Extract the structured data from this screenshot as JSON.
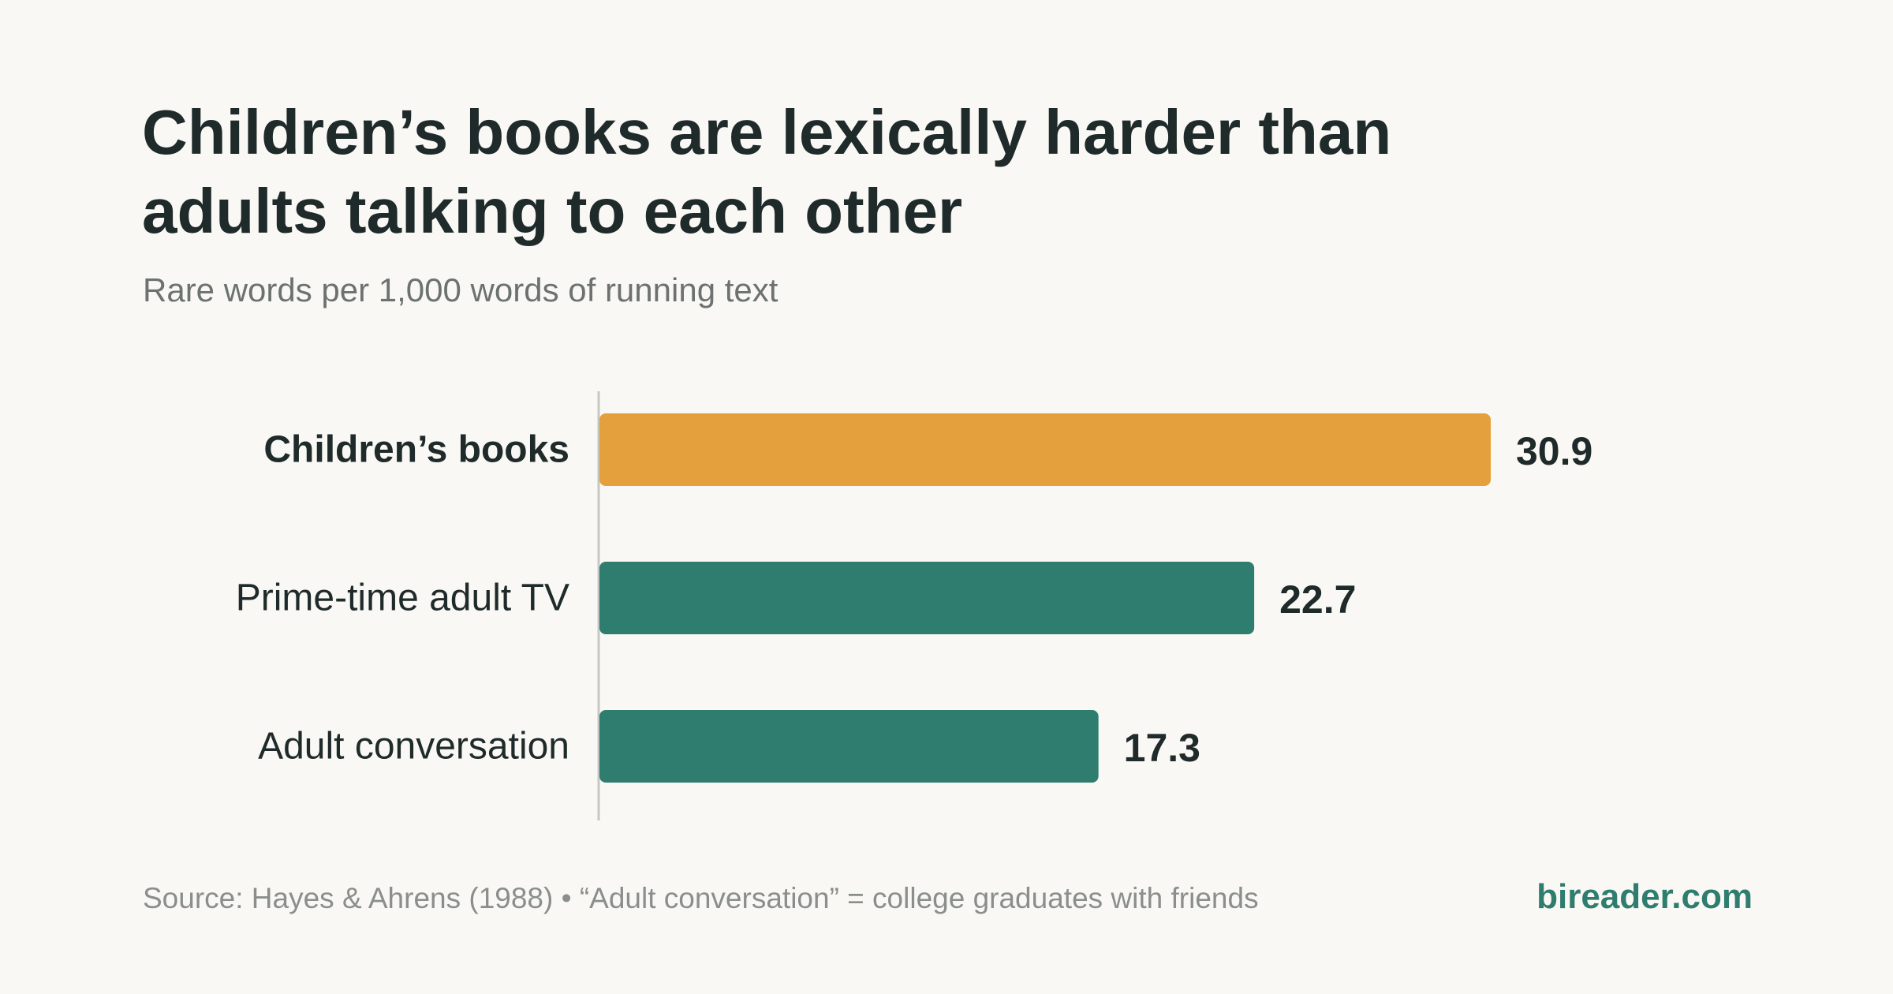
{
  "title": "Children’s books are lexically harder than adults talking to each other",
  "subtitle": "Rare words per 1,000 words of running text",
  "source": "Source: Hayes & Ahrens (1988) • “Adult conversation” = college graduates with friends",
  "brand": "bireader.com",
  "colors": {
    "highlight": "#e3a03c",
    "bar": "#2e7d6e",
    "background": "#faf8f4",
    "axis": "#c5c7c3",
    "text": "#1f2a2a",
    "muted": "#6b7270"
  },
  "chart_data": {
    "type": "bar",
    "orientation": "horizontal",
    "categories": [
      "Children’s books",
      "Prime-time adult TV",
      "Adult conversation"
    ],
    "values": [
      30.9,
      22.7,
      17.3
    ],
    "value_labels": [
      "30.9",
      "22.7",
      "17.3"
    ],
    "highlight": "Children’s books",
    "xlim": [
      0,
      30.9
    ],
    "grid": false,
    "legend": "none"
  }
}
